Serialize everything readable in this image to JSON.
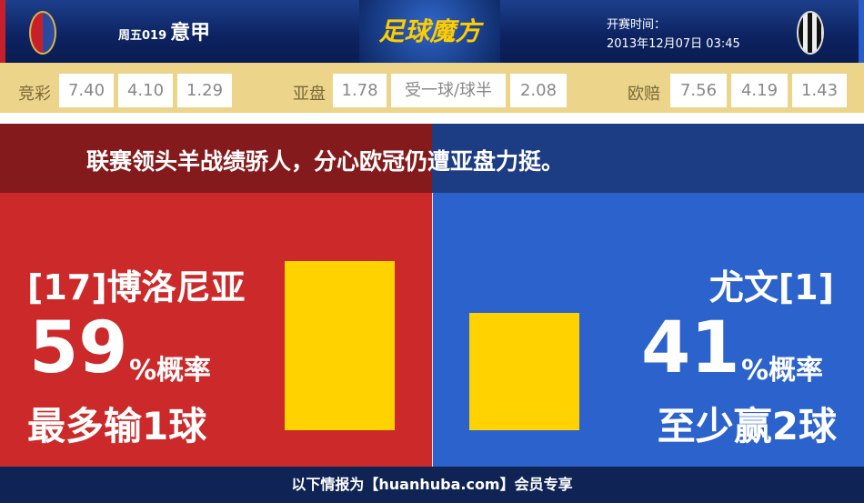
{
  "header": {
    "match_no": "周五019",
    "league": "意甲",
    "brand": "足球魔方",
    "time_label": "开赛时间：",
    "time_value": "2013年12月07日 03:45",
    "home_logo": "bologna-crest",
    "away_logo": "juventus-crest"
  },
  "odds": {
    "jc_label": "竞彩",
    "jc": [
      "7.40",
      "4.10",
      "1.29"
    ],
    "ah_label": "亚盘",
    "ah": [
      "1.78",
      "受一球/球半",
      "2.08"
    ],
    "eu_label": "欧赔",
    "eu": [
      "7.56",
      "4.19",
      "1.43"
    ]
  },
  "headline": "联赛领头羊战绩骄人，分心欧冠仍遭亚盘力挺。",
  "home": {
    "name": "[17]博洛尼亚",
    "pct": "59",
    "pct_unit": "%概率",
    "outcome": "最多输1球",
    "value": 59,
    "color": "#cc2a2a"
  },
  "away": {
    "name": "尤文[1]",
    "pct": "41",
    "pct_unit": "%概率",
    "outcome": "至少赢2球",
    "value": 41,
    "color": "#2b62cc"
  },
  "footer": "以下情报为【huanhuba.com】会员专享"
}
